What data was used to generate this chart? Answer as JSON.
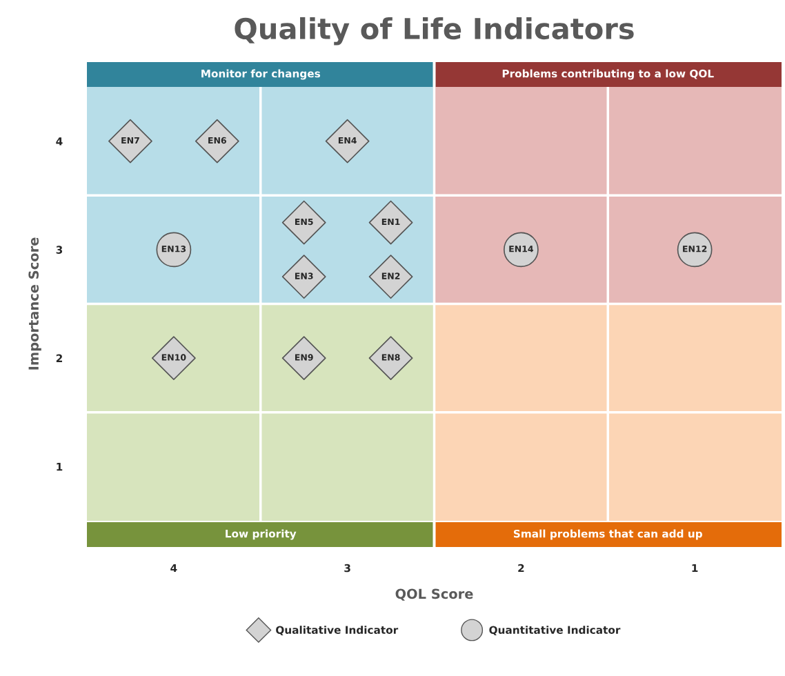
{
  "chart_data": {
    "type": "scatter",
    "title": "Quality of Life Indicators",
    "xlabel": "QOL Score",
    "ylabel": "Importance Score",
    "xlim": [
      4.5,
      0.5
    ],
    "xticks": [
      4,
      3,
      2,
      1
    ],
    "ylim": [
      0.5,
      4.5
    ],
    "yticks": [
      1,
      2,
      3,
      4
    ],
    "grid": false,
    "legend": "bottom",
    "annotations": [
      "Monitor for changes",
      "Problems contributing to a low QOL",
      "Low priority",
      "Small problems that can add up"
    ],
    "series": [
      {
        "name": "Qualitative Indicator",
        "color": "#d3d3d3",
        "marker": "diamond",
        "x": [
          2.75,
          2.75,
          3.25,
          3.0,
          3.25,
          3.75,
          4.25,
          2.75,
          3.25,
          4.0
        ],
        "values": [
          3.25,
          2.75,
          2.75,
          4.0,
          3.25,
          4.0,
          4.0,
          2.0,
          2.0,
          2.0
        ],
        "value_labels": [
          "EN1",
          "EN2",
          "EN3",
          "EN4",
          "EN5",
          "EN6",
          "EN7",
          "EN8",
          "EN9",
          "EN10"
        ]
      },
      {
        "name": "Quantitative Indicator",
        "color": "#d3d3d3",
        "marker": "circle",
        "x": [
          1.0,
          4.0,
          2.0
        ],
        "values": [
          3.0,
          3.0,
          3.0
        ],
        "value_labels": [
          "EN12",
          "EN13",
          "EN14"
        ]
      }
    ]
  }
}
